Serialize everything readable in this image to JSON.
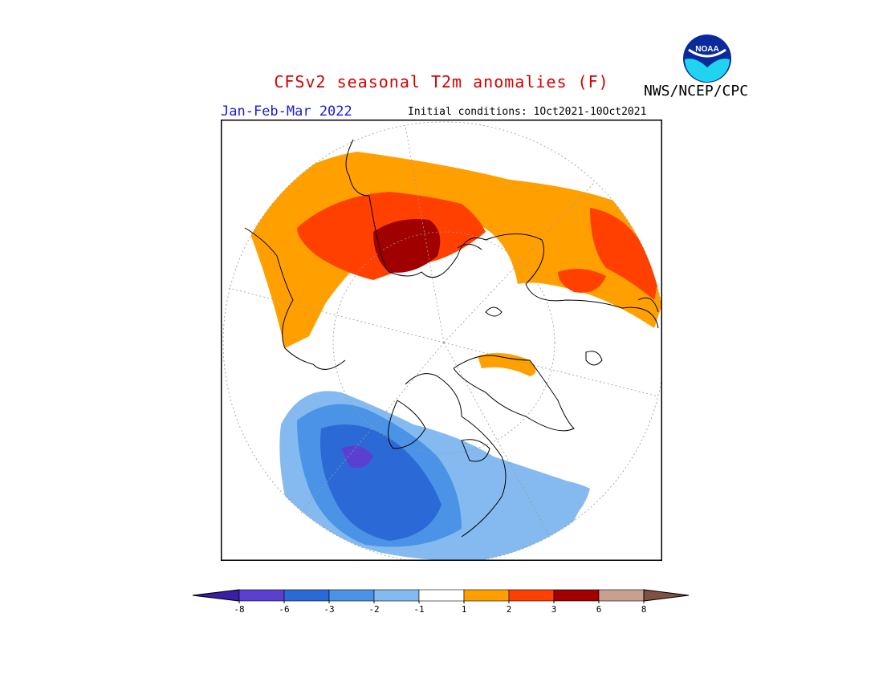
{
  "header": {
    "title": "CFSv2 seasonal T2m anomalies (F)",
    "agency": "NWS/NCEP/CPC",
    "season": "Jan-Feb-Mar 2022",
    "initial_conditions": "Initial conditions: 1Oct2021-10Oct2021",
    "logo_text": "NOAA"
  },
  "legend": {
    "tick_labels": [
      "-8",
      "-6",
      "-3",
      "-2",
      "-1",
      "1",
      "2",
      "3",
      "6",
      "8"
    ],
    "colors": [
      "#3a1ea8",
      "#5b3fd1",
      "#2b6ad6",
      "#4a93e6",
      "#84baf0",
      "#ffffff",
      "#ffa000",
      "#ff4000",
      "#a00000",
      "#c8a090",
      "#805040"
    ]
  },
  "map": {
    "projection": "north-polar-stereographic",
    "regions": [
      {
        "name": "Europe-Asia warm band",
        "anomaly": "1 to 2"
      },
      {
        "name": "Western Siberia",
        "anomaly": "3 to 6"
      },
      {
        "name": "Canada / Alaska",
        "anomaly": "-3 to -6"
      },
      {
        "name": "Eastern US",
        "anomaly": "-1 to -2"
      }
    ]
  }
}
